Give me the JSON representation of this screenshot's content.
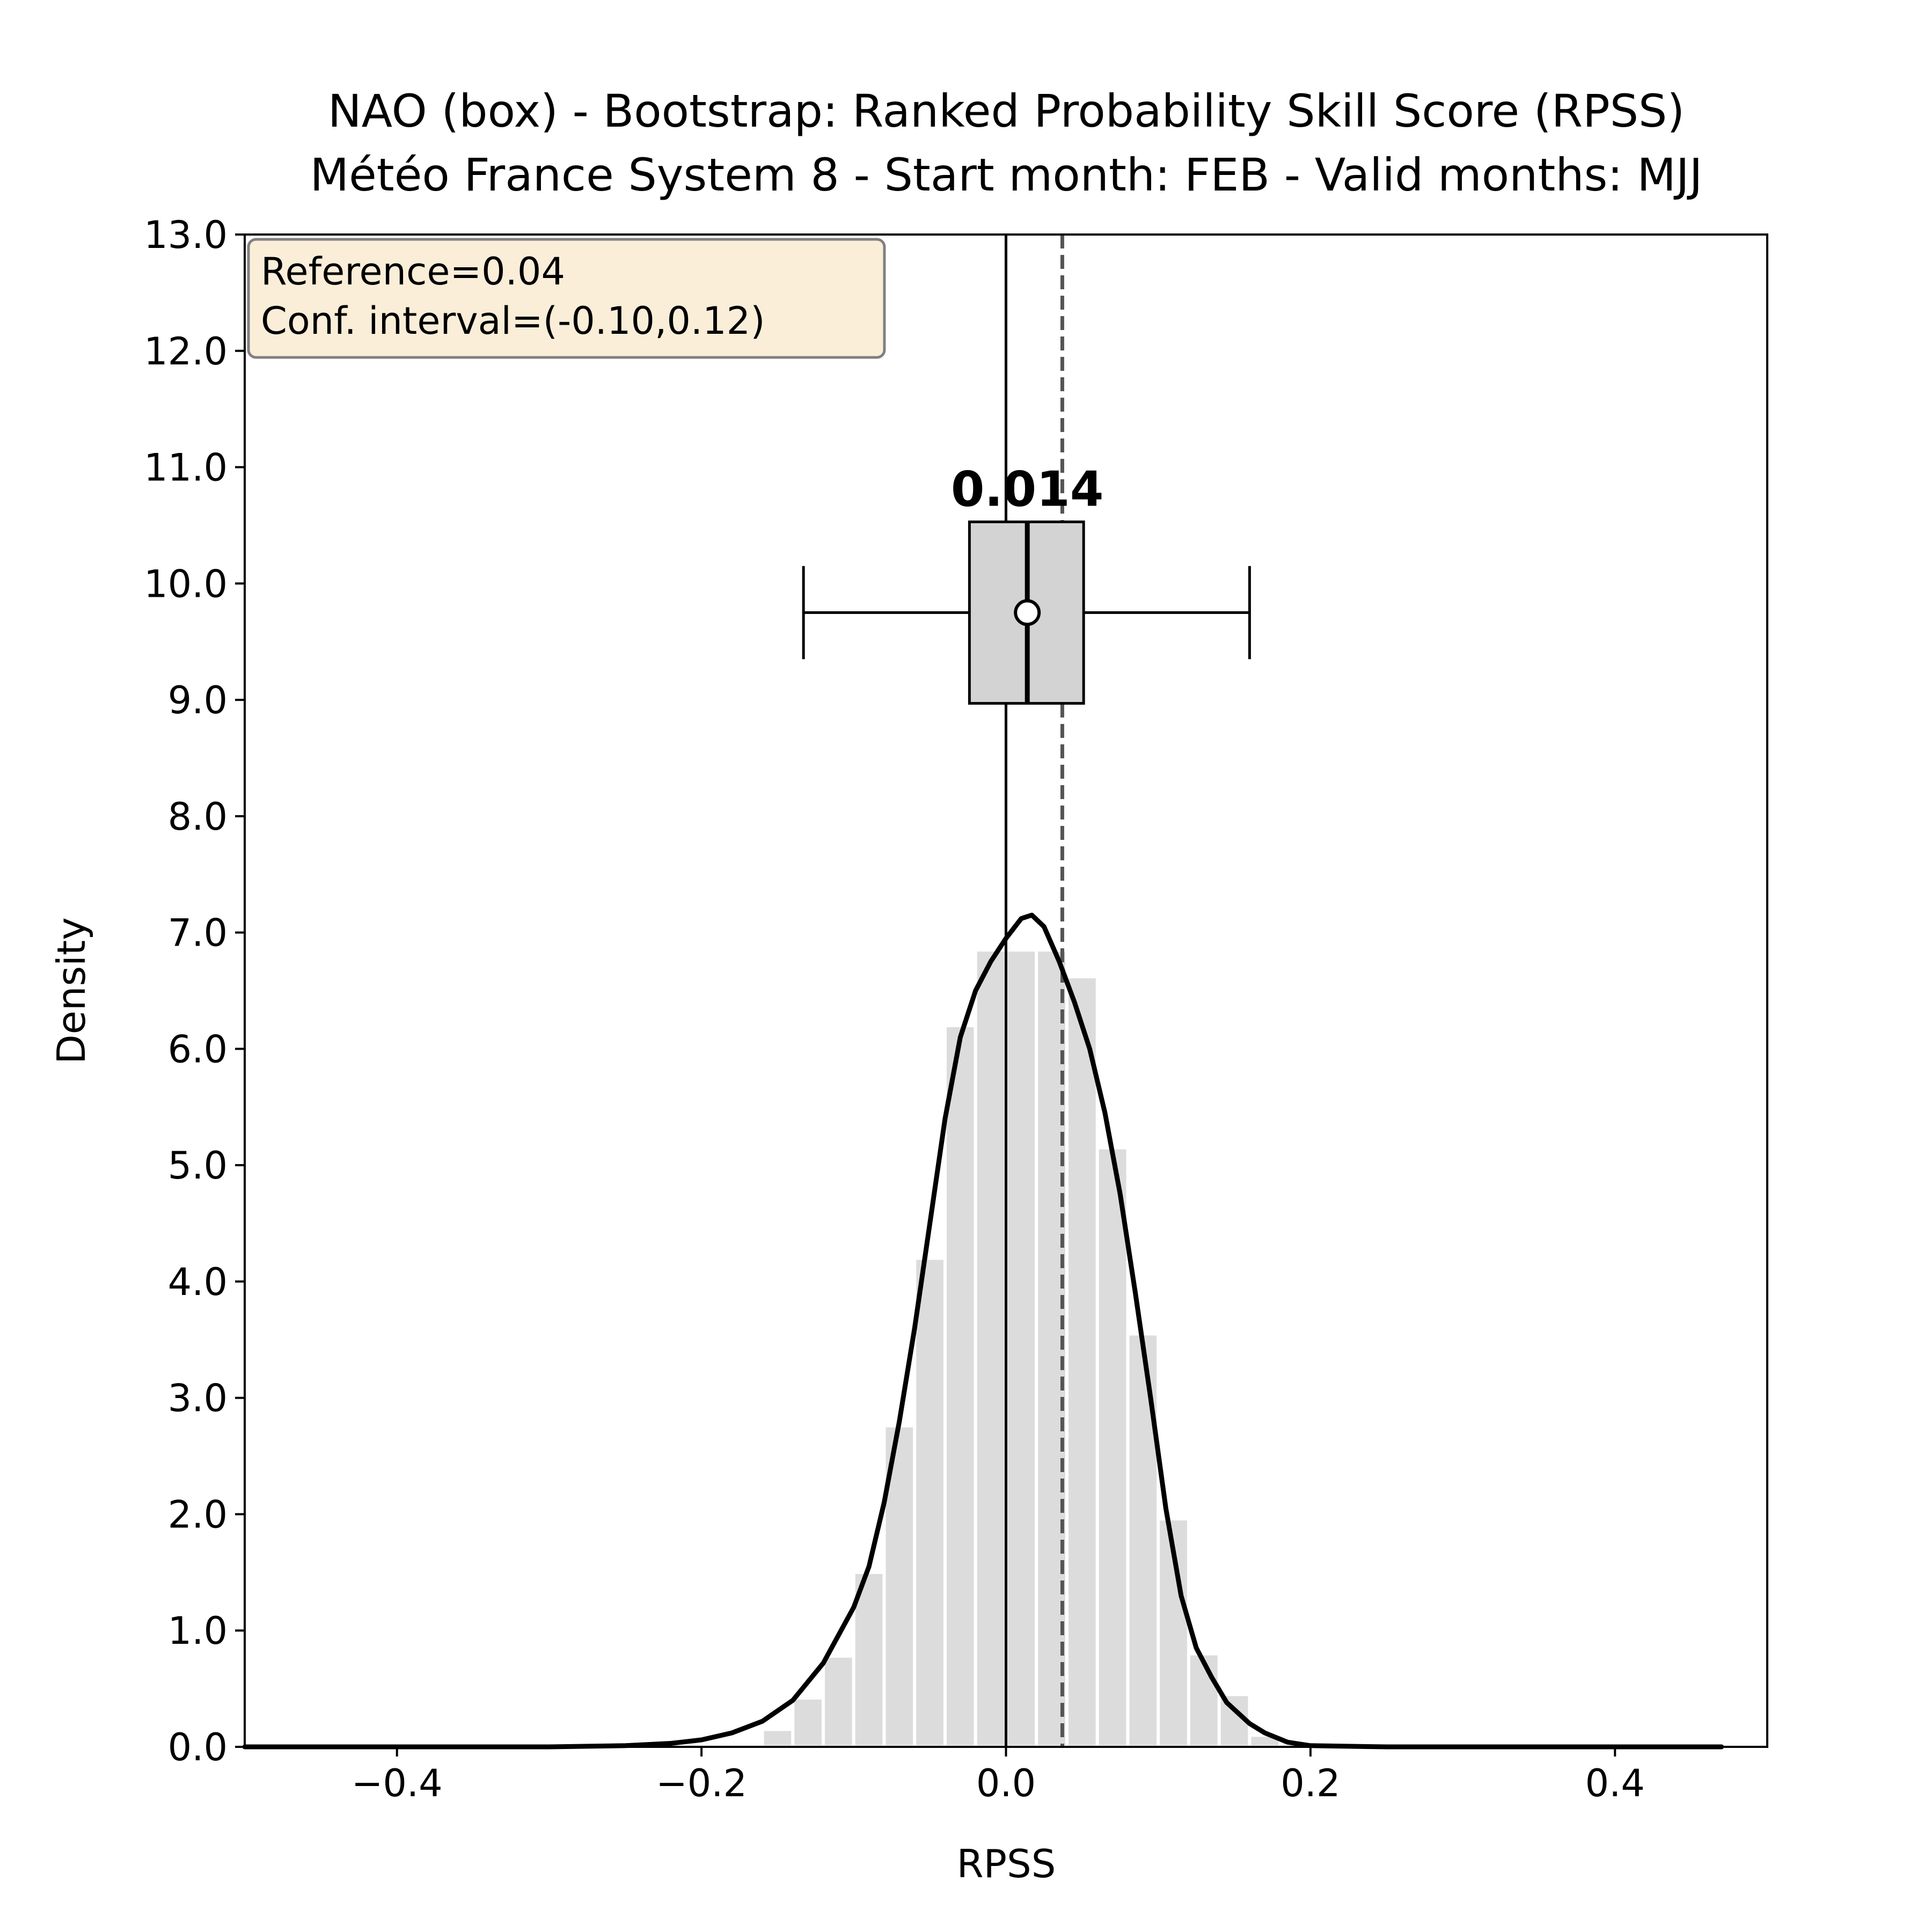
{
  "chart_data": {
    "type": "histogram",
    "title": "NAO (box) - Bootstrap: Ranked Probability Skill Score (RPSS)",
    "subtitle": "Météo France System 8 - Start month: FEB - Valid months: MJJ",
    "xlabel": "RPSS",
    "ylabel": "Density",
    "xlim": [
      -0.5,
      0.5
    ],
    "ylim": [
      0,
      13
    ],
    "x_ticks": [
      -0.4,
      -0.2,
      0.0,
      0.2,
      0.4
    ],
    "x_tick_labels": [
      "−0.4",
      "−0.2",
      "0.0",
      "0.2",
      "0.4"
    ],
    "y_ticks": [
      0,
      1,
      2,
      3,
      4,
      5,
      6,
      7,
      8,
      9,
      10,
      11,
      12,
      13
    ],
    "y_tick_labels": [
      "0.0",
      "1.0",
      "2.0",
      "3.0",
      "4.0",
      "5.0",
      "6.0",
      "7.0",
      "8.0",
      "9.0",
      "10.0",
      "11.0",
      "12.0",
      "13.0"
    ],
    "grid": false,
    "histogram": {
      "bin_width": 0.02,
      "bins": [
        {
          "left": -0.16,
          "right": -0.14,
          "density": 0.15
        },
        {
          "left": -0.14,
          "right": -0.12,
          "density": 0.42
        },
        {
          "left": -0.12,
          "right": -0.1,
          "density": 0.78
        },
        {
          "left": -0.1,
          "right": -0.08,
          "density": 1.5
        },
        {
          "left": -0.08,
          "right": -0.06,
          "density": 2.76
        },
        {
          "left": -0.06,
          "right": -0.04,
          "density": 4.2
        },
        {
          "left": -0.04,
          "right": -0.02,
          "density": 6.2
        },
        {
          "left": -0.02,
          "right": 0.0,
          "density": 6.85
        },
        {
          "left": 0.0,
          "right": 0.02,
          "density": 6.85
        },
        {
          "left": 0.02,
          "right": 0.04,
          "density": 6.85
        },
        {
          "left": 0.04,
          "right": 0.06,
          "density": 6.62
        },
        {
          "left": 0.06,
          "right": 0.08,
          "density": 5.15
        },
        {
          "left": 0.08,
          "right": 0.1,
          "density": 3.55
        },
        {
          "left": 0.1,
          "right": 0.12,
          "density": 1.96
        },
        {
          "left": 0.12,
          "right": 0.14,
          "density": 0.8
        },
        {
          "left": 0.14,
          "right": 0.16,
          "density": 0.45
        },
        {
          "left": 0.16,
          "right": 0.18,
          "density": 0.1
        }
      ],
      "color": "#dcdcdc"
    },
    "kde": {
      "color": "#000000",
      "points": [
        [
          -0.5,
          0.0
        ],
        [
          -0.3,
          0.0
        ],
        [
          -0.25,
          0.01
        ],
        [
          -0.22,
          0.03
        ],
        [
          -0.2,
          0.06
        ],
        [
          -0.18,
          0.12
        ],
        [
          -0.16,
          0.22
        ],
        [
          -0.14,
          0.4
        ],
        [
          -0.12,
          0.72
        ],
        [
          -0.1,
          1.2
        ],
        [
          -0.09,
          1.55
        ],
        [
          -0.08,
          2.1
        ],
        [
          -0.07,
          2.8
        ],
        [
          -0.06,
          3.6
        ],
        [
          -0.05,
          4.5
        ],
        [
          -0.04,
          5.4
        ],
        [
          -0.03,
          6.1
        ],
        [
          -0.02,
          6.5
        ],
        [
          -0.01,
          6.75
        ],
        [
          0.0,
          6.95
        ],
        [
          0.01,
          7.12
        ],
        [
          0.017,
          7.15
        ],
        [
          0.025,
          7.05
        ],
        [
          0.035,
          6.75
        ],
        [
          0.045,
          6.4
        ],
        [
          0.055,
          6.0
        ],
        [
          0.065,
          5.45
        ],
        [
          0.075,
          4.75
        ],
        [
          0.085,
          3.9
        ],
        [
          0.095,
          3.0
        ],
        [
          0.105,
          2.05
        ],
        [
          0.115,
          1.3
        ],
        [
          0.125,
          0.85
        ],
        [
          0.135,
          0.6
        ],
        [
          0.145,
          0.38
        ],
        [
          0.16,
          0.2
        ],
        [
          0.17,
          0.12
        ],
        [
          0.185,
          0.04
        ],
        [
          0.2,
          0.01
        ],
        [
          0.25,
          0.0
        ],
        [
          0.47,
          0.0
        ]
      ]
    },
    "reference_line": {
      "x": 0.0,
      "color": "#000000",
      "style": "solid"
    },
    "observed_line": {
      "x": 0.037,
      "color": "#555555",
      "style": "dashed"
    },
    "boxplot": {
      "y_center": 9.75,
      "y_half_height": 0.78,
      "whisker_cap_half_height": 0.4,
      "whisker_low": -0.133,
      "q1": -0.024,
      "median": 0.014,
      "q3": 0.051,
      "whisker_high": 0.16,
      "mean": 0.014,
      "fill": "#d3d3d3",
      "median_label": "0.014"
    },
    "annotation": {
      "lines": [
        "Reference=0.04",
        "Conf. interval=(-0.10,0.12)"
      ],
      "position": "top-left",
      "background": "#f5deb3"
    }
  }
}
